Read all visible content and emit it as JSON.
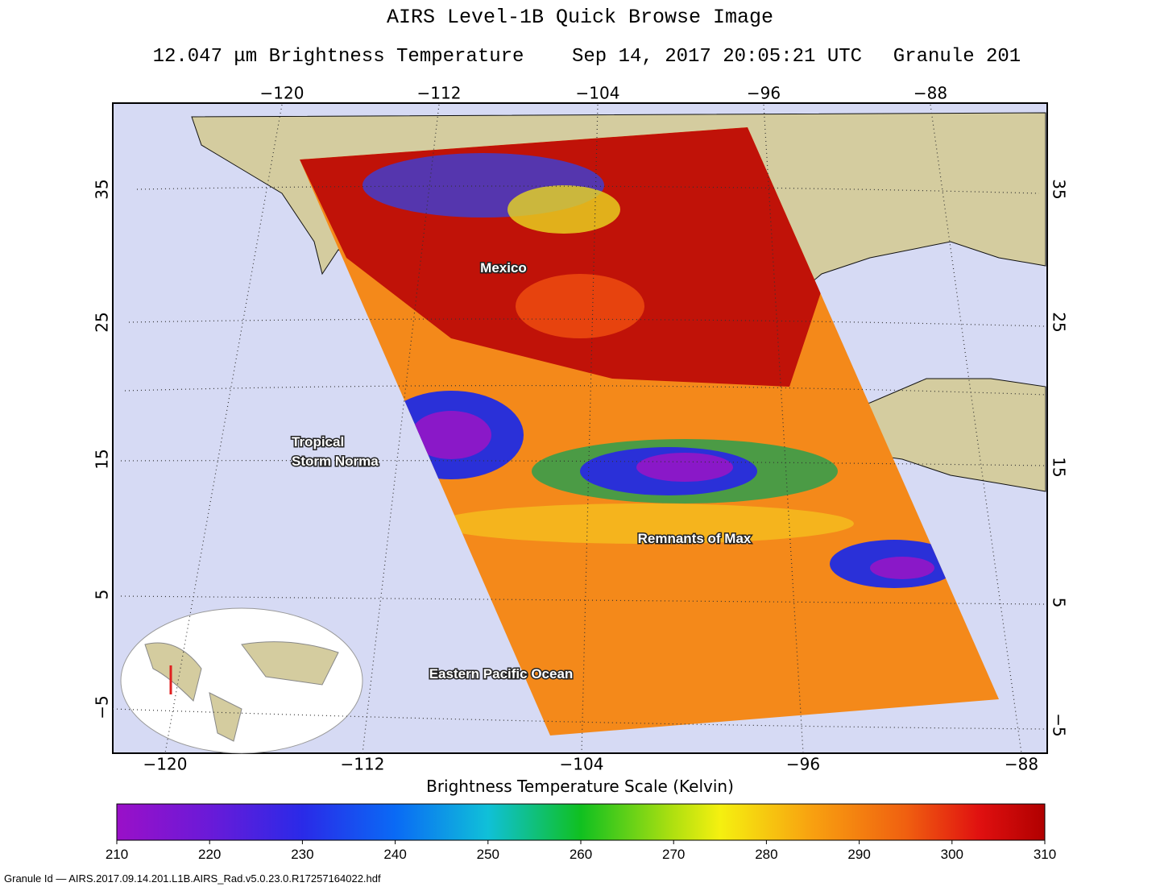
{
  "header": {
    "title": "AIRS Level-1B Quick Browse Image",
    "subtitle_parts": [
      "12.047 μm Brightness Temperature",
      "Sep 14, 2017 20:05:21 UTC",
      "Granule 201"
    ]
  },
  "map": {
    "top_ticks": [
      "−120",
      "−112",
      "−104",
      "−96",
      "−88"
    ],
    "bottom_ticks": [
      "−120",
      "−112",
      "−104",
      "−96",
      "−88"
    ],
    "left_ticks": [
      "35",
      "25",
      "15",
      "5",
      "−5"
    ],
    "right_ticks": [
      "35",
      "25",
      "15",
      "5",
      "−5"
    ],
    "labels": [
      "Mexico",
      "Tropical",
      "Storm Norma",
      "Remnants of Max",
      "Eastern Pacific Ocean"
    ]
  },
  "colorbar": {
    "title": "Brightness Temperature Scale (Kelvin)",
    "range": [
      210,
      310
    ],
    "ticks": [
      210,
      220,
      230,
      240,
      250,
      260,
      270,
      280,
      290,
      300,
      310
    ]
  },
  "footer": {
    "granule_id": "Granule Id — AIRS.2017.09.14.201.L1B.AIRS_Rad.v5.0.23.0.R17257164022.hdf"
  }
}
